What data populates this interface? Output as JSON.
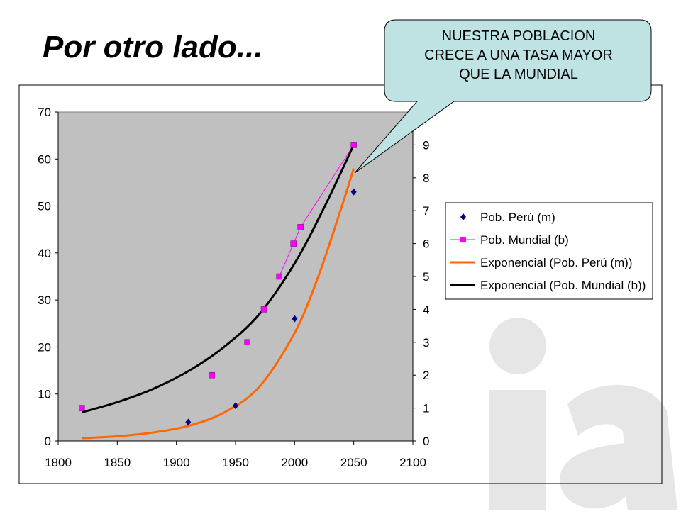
{
  "slide": {
    "title": "Por otro lado...",
    "callout": {
      "lines": [
        "NUESTRA POBLACION",
        "CRECE A UNA TASA MAYOR",
        "QUE LA MUNDIAL"
      ],
      "fill_color": "#bfe3e3"
    },
    "watermark": {
      "text": "ia",
      "color": "#e6e6e6"
    }
  },
  "chart_data": {
    "type": "scatter",
    "title": "",
    "plot_background": "#c0c0c0",
    "legend_position": "right",
    "x_axis": {
      "min": 1800,
      "max": 2100,
      "ticks": [
        1800,
        1850,
        1900,
        1950,
        2000,
        2050,
        2100
      ]
    },
    "y_axis_left": {
      "min": 0,
      "max": 70,
      "ticks": [
        0,
        10,
        20,
        30,
        40,
        50,
        60,
        70
      ]
    },
    "y_axis_right": {
      "min": 0,
      "max": 10,
      "ticks": [
        0,
        1,
        2,
        3,
        4,
        5,
        6,
        7,
        8,
        9
      ]
    },
    "series": [
      {
        "name": "Pob. Perú (m)",
        "axis": "left",
        "marker": "diamond",
        "color": "#000080",
        "points": [
          {
            "x": 1910,
            "y": 4
          },
          {
            "x": 1950,
            "y": 7.5
          },
          {
            "x": 2000,
            "y": 26
          },
          {
            "x": 2050,
            "y": 53
          }
        ]
      },
      {
        "name": "Pob. Mundial (b)",
        "axis": "right",
        "marker": "square",
        "color": "#ff00ff",
        "points": [
          {
            "x": 1820,
            "y": 1.0
          },
          {
            "x": 1930,
            "y": 2.0
          },
          {
            "x": 1960,
            "y": 3.0
          },
          {
            "x": 1974,
            "y": 4.0
          },
          {
            "x": 1987,
            "y": 5.0
          },
          {
            "x": 1999,
            "y": 6.0
          },
          {
            "x": 2005,
            "y": 6.5
          },
          {
            "x": 2050,
            "y": 9.0
          }
        ],
        "connect_from_index": 4
      },
      {
        "name": "Exponencial (Pob. Perú (m))",
        "axis": "left",
        "type": "trendline",
        "color": "#ff6600",
        "points": [
          {
            "x": 1820,
            "y": 0.6
          },
          {
            "x": 1850,
            "y": 1.0
          },
          {
            "x": 1880,
            "y": 1.8
          },
          {
            "x": 1910,
            "y": 3.2
          },
          {
            "x": 1940,
            "y": 6.0
          },
          {
            "x": 1970,
            "y": 11.5
          },
          {
            "x": 2000,
            "y": 23.0
          },
          {
            "x": 2020,
            "y": 35.0
          },
          {
            "x": 2040,
            "y": 50.0
          },
          {
            "x": 2050,
            "y": 58.0
          }
        ]
      },
      {
        "name": "Exponencial (Pob. Mundial (b))",
        "axis": "right",
        "type": "trendline",
        "color": "#000000",
        "points": [
          {
            "x": 1820,
            "y": 0.87
          },
          {
            "x": 1850,
            "y": 1.18
          },
          {
            "x": 1880,
            "y": 1.58
          },
          {
            "x": 1910,
            "y": 2.12
          },
          {
            "x": 1940,
            "y": 2.85
          },
          {
            "x": 1970,
            "y": 3.85
          },
          {
            "x": 2000,
            "y": 5.4
          },
          {
            "x": 2025,
            "y": 7.1
          },
          {
            "x": 2050,
            "y": 9.0
          }
        ]
      }
    ]
  }
}
